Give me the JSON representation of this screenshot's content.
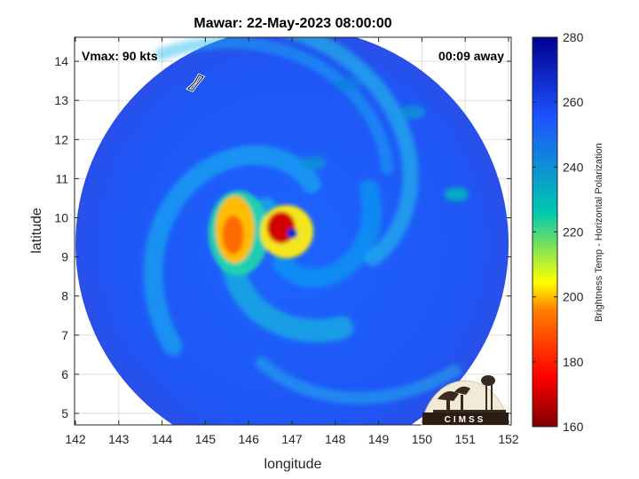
{
  "chart_data": {
    "type": "heatmap",
    "title": "Mawar: 22-May-2023 08:00:00",
    "xlabel": "longitude",
    "ylabel": "latitude",
    "xlim": [
      142,
      152
    ],
    "ylim": [
      4.7,
      14.6
    ],
    "x_ticks": [
      142,
      143,
      144,
      145,
      146,
      147,
      148,
      149,
      150,
      151,
      152
    ],
    "y_ticks": [
      5,
      6,
      7,
      8,
      9,
      10,
      11,
      12,
      13,
      14
    ],
    "grid": true,
    "annotations": {
      "vmax": "Vmax: 90 kts",
      "away": "00:09 away"
    },
    "colorbar": {
      "label": "Brightness Temp - Horizontal Polarization",
      "range": [
        160,
        280
      ],
      "ticks": [
        160,
        180,
        200,
        220,
        240,
        260,
        280
      ],
      "colors": [
        "#7f0000",
        "#ff0000",
        "#ff8000",
        "#ffff00",
        "#00c8b0",
        "#1e50ff",
        "#00008f"
      ]
    },
    "storm_center": {
      "lon": 147.0,
      "lat": 9.6
    },
    "swath": {
      "center_lon": 147.0,
      "center_lat": 9.6,
      "radius_deg": 5.0
    },
    "features": [
      {
        "kind": "eye",
        "lon": 147.0,
        "lat": 9.6,
        "temp": 270
      },
      {
        "kind": "eyewall",
        "lon": 146.75,
        "lat": 9.75,
        "temp": 170
      },
      {
        "kind": "inner-band",
        "lon": 145.6,
        "lat": 9.7,
        "temp": 200
      },
      {
        "kind": "outer-band",
        "lon": 147.5,
        "lat": 11.4,
        "temp": 240
      },
      {
        "kind": "outer-band",
        "lon": 150.8,
        "lat": 10.6,
        "temp": 230
      },
      {
        "kind": "outer-band",
        "lon": 149.8,
        "lat": 12.7,
        "temp": 240
      },
      {
        "kind": "outer-band",
        "lon": 148.3,
        "lat": 13.4,
        "temp": 245
      }
    ],
    "logo_text": "CIMSS"
  }
}
